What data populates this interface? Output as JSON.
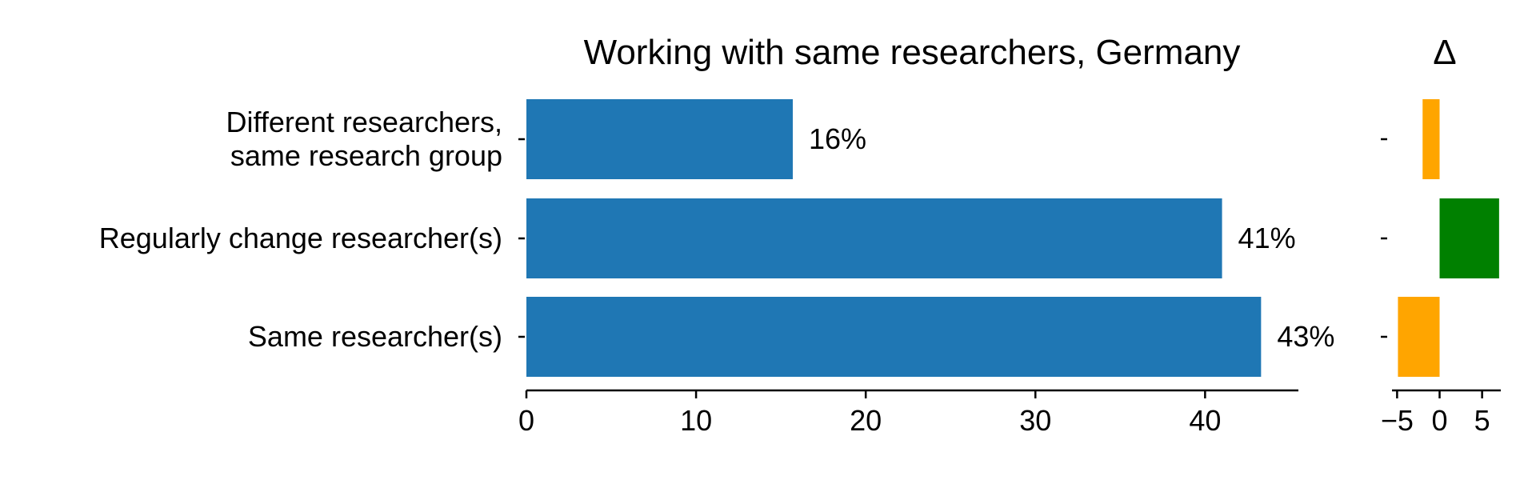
{
  "chart_data": [
    {
      "type": "bar",
      "orientation": "horizontal",
      "title": "Working with same researchers, Germany",
      "categories": [
        [
          "Different researchers,",
          "same research group"
        ],
        [
          "Regularly change researcher(s)"
        ],
        [
          "Same researcher(s)"
        ]
      ],
      "values": [
        15.7,
        41.0,
        43.3
      ],
      "data_labels": [
        "16%",
        "41%",
        "43%"
      ],
      "xlim": [
        0,
        45.5
      ],
      "xticks": [
        0,
        10,
        20,
        30,
        40
      ],
      "xtick_labels": [
        "0",
        "10",
        "20",
        "30",
        "40"
      ],
      "xlabel": "",
      "ylabel": "",
      "bar_color": "#1f77b4",
      "grid": false
    },
    {
      "type": "bar",
      "orientation": "horizontal",
      "title": "Δ",
      "categories": [
        [
          "Different researchers,",
          "same research group"
        ],
        [
          "Regularly change researcher(s)"
        ],
        [
          "Same researcher(s)"
        ]
      ],
      "values": [
        -2.0,
        7.0,
        -4.9
      ],
      "xlim": [
        -5.6,
        7.2
      ],
      "xticks": [
        -5,
        0,
        5
      ],
      "xtick_labels": [
        "−5",
        "0",
        "5"
      ],
      "positive_color": "#008000",
      "negative_color": "#ffa500",
      "grid": false
    }
  ]
}
